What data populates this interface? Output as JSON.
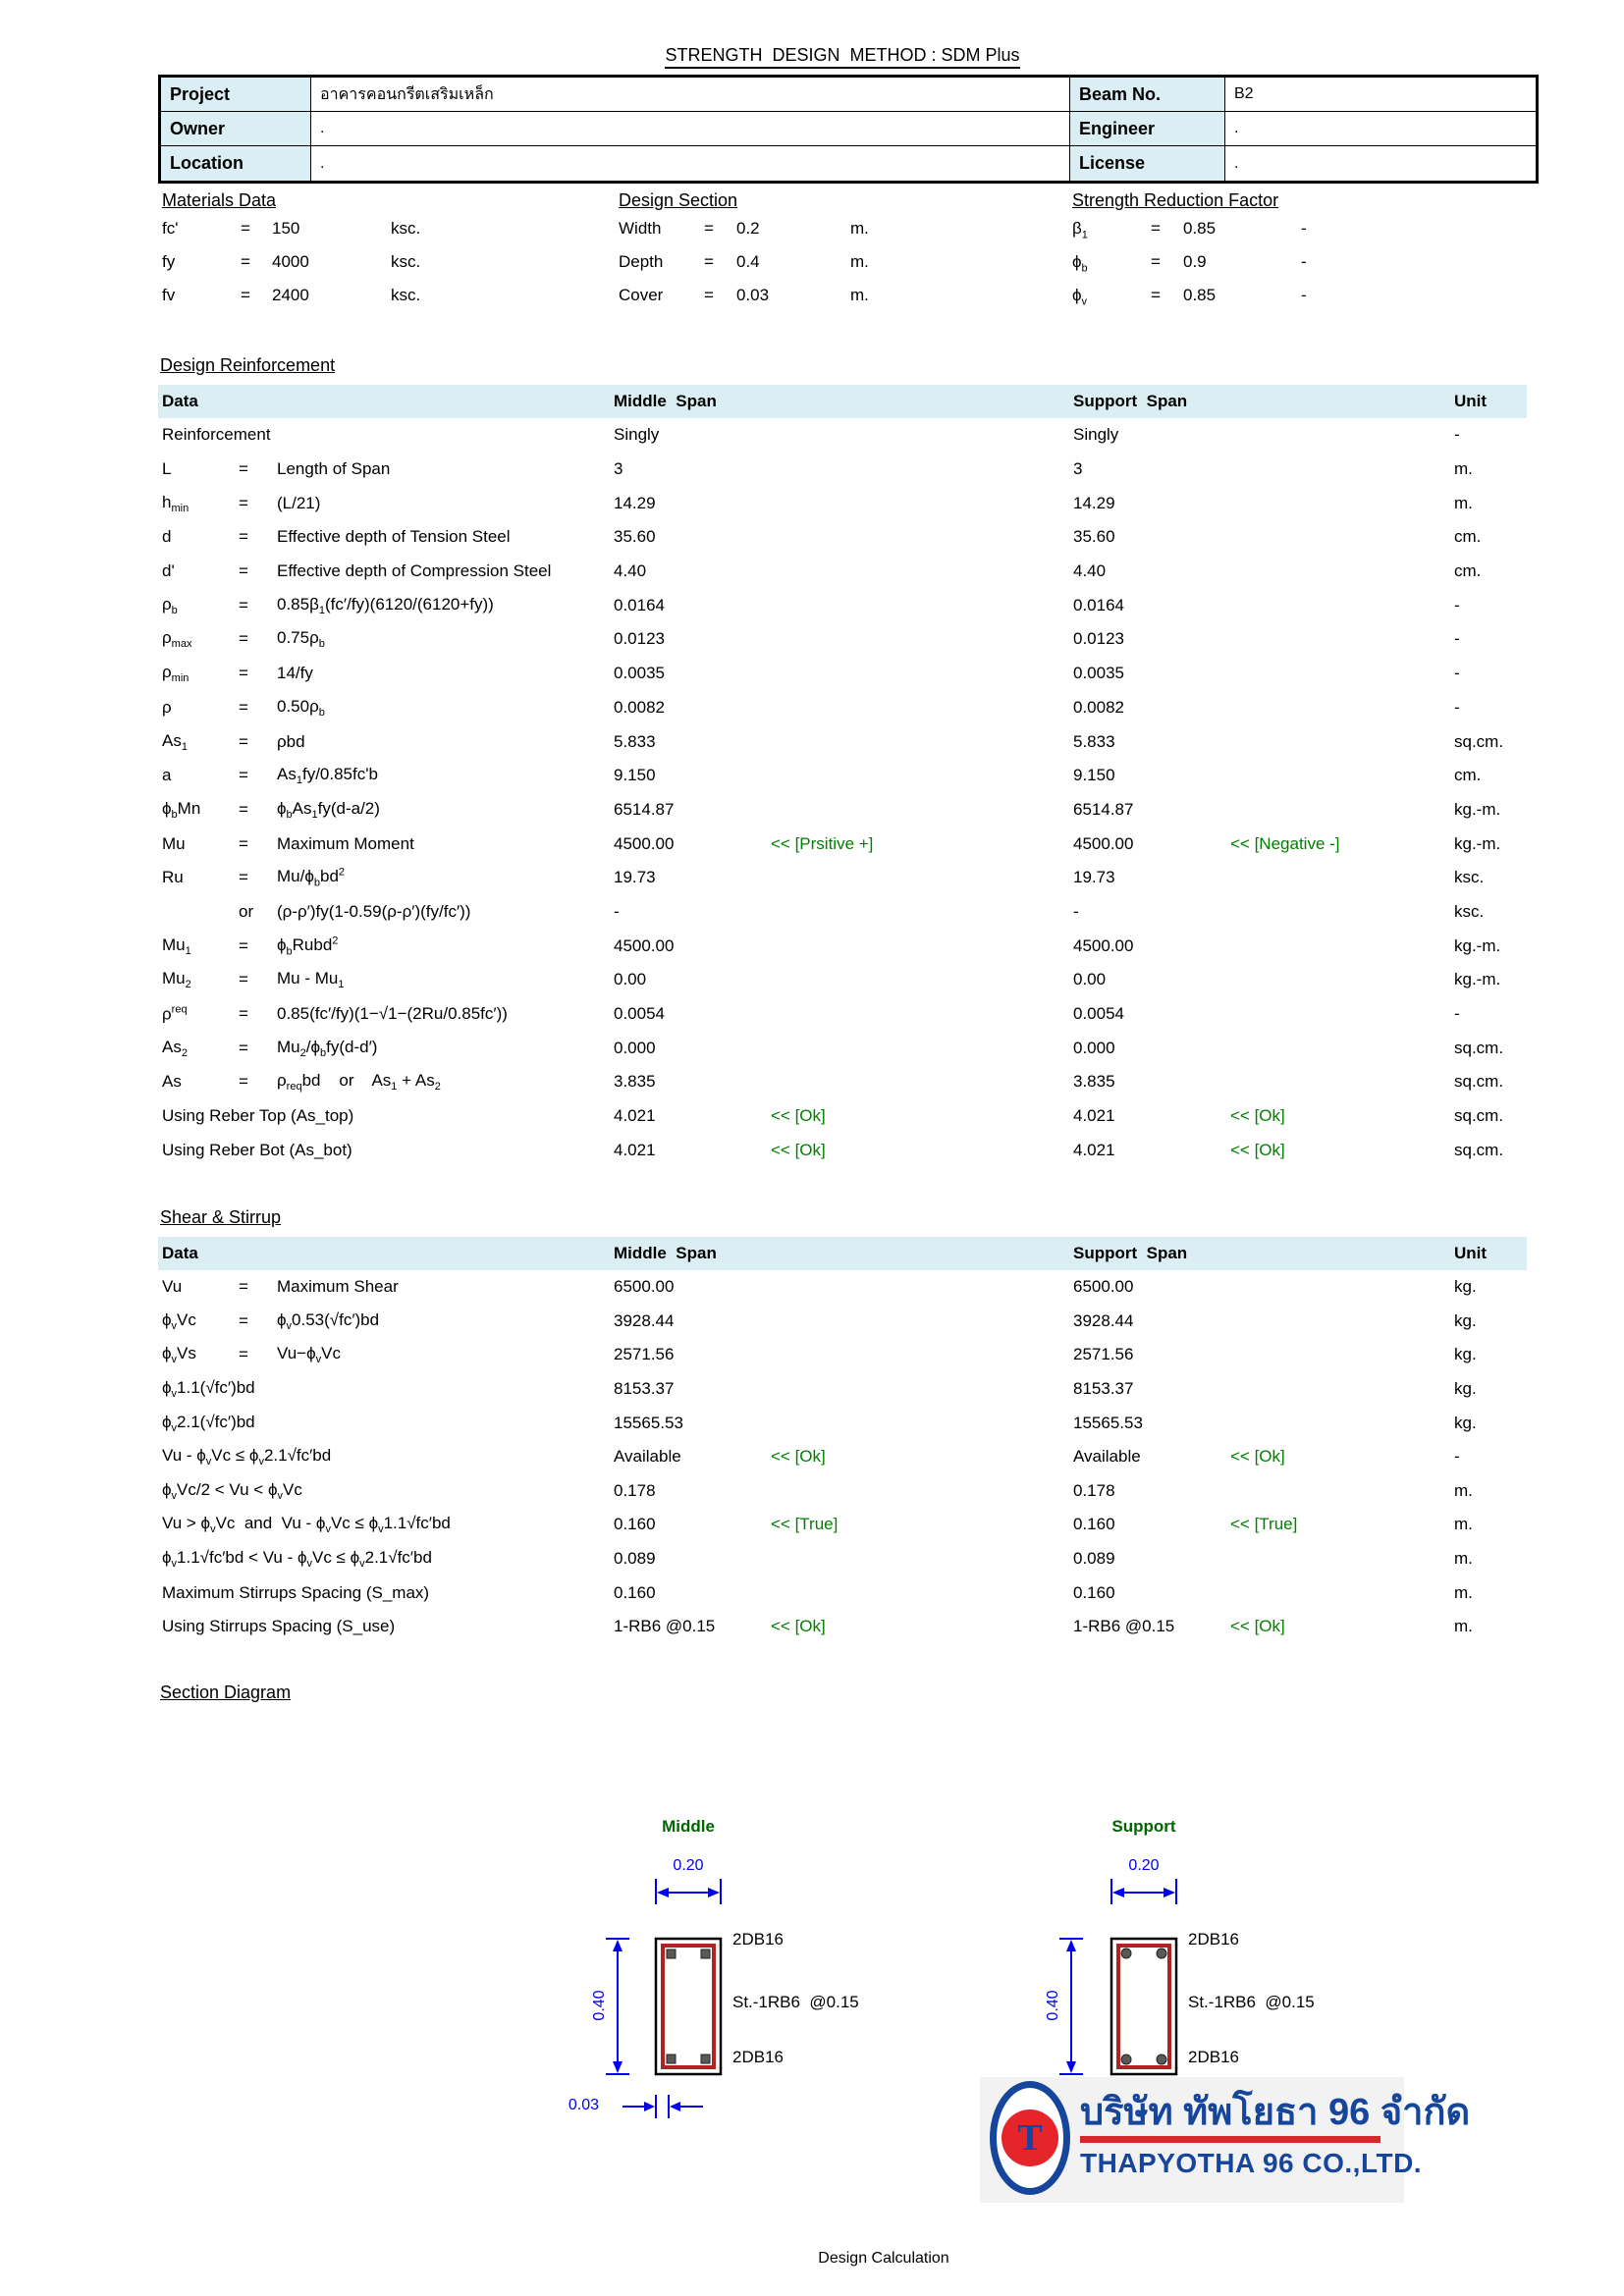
{
  "title": "STRENGTH  DESIGN  METHOD : SDM Plus",
  "header_table": {
    "rows": [
      {
        "label": "Project",
        "value": "อาคารคอนกรีตเสริมเหล็ก",
        "label2": "Beam No.",
        "value2": "B2"
      },
      {
        "label": "Owner",
        "value": ".",
        "label2": "Engineer",
        "value2": "."
      },
      {
        "label": "Location",
        "value": ".",
        "label2": "License",
        "value2": "."
      }
    ]
  },
  "materials": {
    "heading": "Materials Data",
    "rows": [
      {
        "label": "fc'",
        "eq": "=",
        "value": "150",
        "unit": "ksc."
      },
      {
        "label": "fy",
        "eq": "=",
        "value": "4000",
        "unit": "ksc."
      },
      {
        "label": "fv",
        "eq": "=",
        "value": "2400",
        "unit": "ksc."
      }
    ]
  },
  "design_section": {
    "heading": "Design Section",
    "rows": [
      {
        "label": "Width",
        "eq": "=",
        "value": "0.2",
        "unit": "m."
      },
      {
        "label": "Depth",
        "eq": "=",
        "value": "0.4",
        "unit": "m."
      },
      {
        "label": "Cover",
        "eq": "=",
        "value": "0.03",
        "unit": "m."
      }
    ]
  },
  "strength_reduction": {
    "heading": "Strength Reduction Factor",
    "rows": [
      {
        "label": "β<sub>1</sub>",
        "eq": "=",
        "value": "0.85",
        "unit": "-"
      },
      {
        "label": "ϕ<sub>b</sub>",
        "eq": "=",
        "value": "0.9",
        "unit": "-"
      },
      {
        "label": "ϕ<sub>v</sub>",
        "eq": "=",
        "value": "0.85",
        "unit": "-"
      }
    ]
  },
  "design_reinforcement": {
    "heading": "Design Reinforcement",
    "columns": {
      "data": "Data",
      "middle": "Middle  Span",
      "support": "Support  Span",
      "unit": "Unit"
    },
    "rows": [
      {
        "label": "Reinforcement",
        "middle": "Singly",
        "support": "Singly",
        "unit": "-"
      },
      {
        "label": "L",
        "eq": "=",
        "formula": "Length of Span",
        "middle": "3",
        "support": "3",
        "unit": "m."
      },
      {
        "label": "h<sub>min</sub>",
        "eq": "=",
        "formula": "(L/21)",
        "middle": "14.29",
        "support": "14.29",
        "unit": "m."
      },
      {
        "label": "d",
        "eq": "=",
        "formula": "Effective depth of Tension Steel",
        "middle": "35.60",
        "support": "35.60",
        "unit": "cm."
      },
      {
        "label": "d'",
        "eq": "=",
        "formula": "Effective depth of Compression Steel",
        "middle": "4.40",
        "support": "4.40",
        "unit": "cm."
      },
      {
        "label": "ρ<sub>b</sub>",
        "eq": "=",
        "formula": "0.85β<sub>1</sub>(fc′/fy)(6120/(6120+fy))",
        "middle": "0.0164",
        "support": "0.0164",
        "unit": "-"
      },
      {
        "label": "ρ<sub>max</sub>",
        "eq": "=",
        "formula": "0.75ρ<sub>b</sub>",
        "middle": "0.0123",
        "support": "0.0123",
        "unit": "-"
      },
      {
        "label": "ρ<sub>min</sub>",
        "eq": "=",
        "formula": "14/fy",
        "middle": "0.0035",
        "support": "0.0035",
        "unit": "-"
      },
      {
        "label": "ρ",
        "eq": "=",
        "formula": "0.50ρ<sub>b</sub>",
        "middle": "0.0082",
        "support": "0.0082",
        "unit": "-"
      },
      {
        "label": "As<sub>1</sub>",
        "eq": "=",
        "formula": "ρbd",
        "middle": "5.833",
        "support": "5.833",
        "unit": "sq.cm."
      },
      {
        "label": "a",
        "eq": "=",
        "formula": "As<sub>1</sub>fy/0.85fc'b",
        "middle": "9.150",
        "support": "9.150",
        "unit": "cm."
      },
      {
        "label": "ϕ<sub>b</sub>Mn",
        "eq": "=",
        "formula": "ϕ<sub>b</sub>As<sub>1</sub>fy(d-a/2)",
        "middle": "6514.87",
        "support": "6514.87",
        "unit": "kg.-m."
      },
      {
        "label": "Mu",
        "eq": "=",
        "formula": "Maximum Moment",
        "middle": "4500.00",
        "middle_note": "<< [Prsitive +]",
        "support": "4500.00",
        "support_note": "<< [Negative -]",
        "unit": "kg.-m."
      },
      {
        "label": "Ru",
        "eq": "=",
        "formula": "Mu/ϕ<sub>b</sub>bd<sup>2</sup>",
        "middle": "19.73",
        "support": "19.73",
        "unit": "ksc."
      },
      {
        "eq": "or",
        "formula": "(ρ-ρ′)fy(1-0.59(ρ-ρ′)(fy/fc′))",
        "middle": "-",
        "support": "-",
        "unit": "ksc."
      },
      {
        "label": "Mu<sub>1</sub>",
        "eq": "=",
        "formula": "ϕ<sub>b</sub>Rubd<sup>2</sup>",
        "middle": "4500.00",
        "support": "4500.00",
        "unit": "kg.-m."
      },
      {
        "label": "Mu<sub>2</sub>",
        "eq": "=",
        "formula": "Mu - Mu<sub>1</sub>",
        "middle": "0.00",
        "support": "0.00",
        "unit": "kg.-m."
      },
      {
        "label": "ρ<sup>req</sup>",
        "eq": "=",
        "formula": "0.85(fc′/fy)(1−√1−(2Ru/0.85fc′))",
        "middle": "0.0054",
        "support": "0.0054",
        "unit": "-"
      },
      {
        "label": "As<sub>2</sub>",
        "eq": "=",
        "formula": "Mu<sub>2</sub>/ϕ<sub>b</sub>fy(d-d′)",
        "middle": "0.000",
        "support": "0.000",
        "unit": "sq.cm."
      },
      {
        "label": "As",
        "eq": "=",
        "formula": "ρ<sub>req</sub>bd    or    As<sub>1</sub> + As<sub>2</sub>",
        "middle": "3.835",
        "support": "3.835",
        "unit": "sq.cm."
      },
      {
        "label": "Using Reber Top (As_top)",
        "middle": "4.021",
        "middle_note": "<< [Ok]",
        "support": "4.021",
        "support_note": "<< [Ok]",
        "unit": "sq.cm."
      },
      {
        "label": "Using Reber Bot (As_bot)",
        "middle": "4.021",
        "middle_note": "<< [Ok]",
        "support": "4.021",
        "support_note": "<< [Ok]",
        "unit": "sq.cm."
      }
    ]
  },
  "shear_stirrup": {
    "heading": "Shear & Stirrup",
    "columns": {
      "data": "Data",
      "middle": "Middle  Span",
      "support": "Support  Span",
      "unit": "Unit"
    },
    "rows": [
      {
        "label": "Vu",
        "eq": "=",
        "formula": "Maximum Shear",
        "middle": "6500.00",
        "support": "6500.00",
        "unit": "kg."
      },
      {
        "label": "ϕ<sub>v</sub>Vc",
        "eq": "=",
        "formula": "ϕ<sub>v</sub>0.53(√fc′)bd",
        "middle": "3928.44",
        "support": "3928.44",
        "unit": "kg."
      },
      {
        "label": "ϕ<sub>v</sub>Vs",
        "eq": "=",
        "formula": "Vu−ϕ<sub>v</sub>Vc",
        "middle": "2571.56",
        "support": "2571.56",
        "unit": "kg."
      },
      {
        "label": "ϕ<sub>v</sub>1.1(√fc′)bd",
        "middle": "8153.37",
        "support": "8153.37",
        "unit": "kg."
      },
      {
        "label": "ϕ<sub>v</sub>2.1(√fc′)bd",
        "middle": "15565.53",
        "support": "15565.53",
        "unit": "kg."
      },
      {
        "label": "Vu - ϕ<sub>v</sub>Vc ≤ ϕ<sub>v</sub>2.1√fc′bd",
        "middle": "Available",
        "middle_note": "<< [Ok]",
        "support": "Available",
        "support_note": "<< [Ok]",
        "unit": "-"
      },
      {
        "label": "ϕ<sub>v</sub>Vc/2 < Vu < ϕ<sub>v</sub>Vc",
        "middle": "0.178",
        "support": "0.178",
        "unit": "m."
      },
      {
        "label": "Vu > ϕ<sub>v</sub>Vc  and  Vu - ϕ<sub>v</sub>Vc ≤ ϕ<sub>v</sub>1.1√fc′bd",
        "middle": "0.160",
        "middle_note": "<< [True]",
        "support": "0.160",
        "support_note": "<< [True]",
        "unit": "m."
      },
      {
        "label": "ϕ<sub>v</sub>1.1√fc′bd < Vu - ϕ<sub>v</sub>Vc ≤ ϕ<sub>v</sub>2.1√fc′bd",
        "middle": "0.089",
        "support": "0.089",
        "unit": "m."
      },
      {
        "label": "Maximum Stirrups Spacing (S_max)",
        "middle": "0.160",
        "support": "0.160",
        "unit": "m."
      },
      {
        "label": "Using Stirrups Spacing (S_use)",
        "middle": "1-RB6 @0.15",
        "middle_note": "<< [Ok]",
        "support": "1-RB6 @0.15",
        "support_note": "<< [Ok]",
        "unit": "m."
      }
    ]
  },
  "section_diagram": {
    "heading": "Section Diagram",
    "middle": {
      "title": "Middle",
      "width_dim": "0.20",
      "height_dim": "0.40",
      "cover_dim": "0.03",
      "top_bars": "2DB16",
      "stirrup_label": "St.-1RB6  @0.15",
      "bottom_bars": "2DB16"
    },
    "support": {
      "title": "Support",
      "width_dim": "0.20",
      "height_dim": "0.40",
      "top_bars": "2DB16",
      "stirrup_label": "St.-1RB6  @0.15",
      "bottom_bars": "2DB16"
    }
  },
  "logo": {
    "monogram": "T",
    "thai_name": "บริษัท ทัพโยธา 96 จำกัด",
    "english_name": "THAPYOTHA 96 CO.,LTD."
  },
  "footer": "Design Calculation",
  "colors": {
    "band_blue": "#dbeef4",
    "note_green": "#008000",
    "diagram_green": "#006600",
    "dimension_blue": "#0000f0",
    "stirrup_red": "#b22222",
    "logo_blue": "#16459c",
    "logo_red": "#e6252b"
  }
}
